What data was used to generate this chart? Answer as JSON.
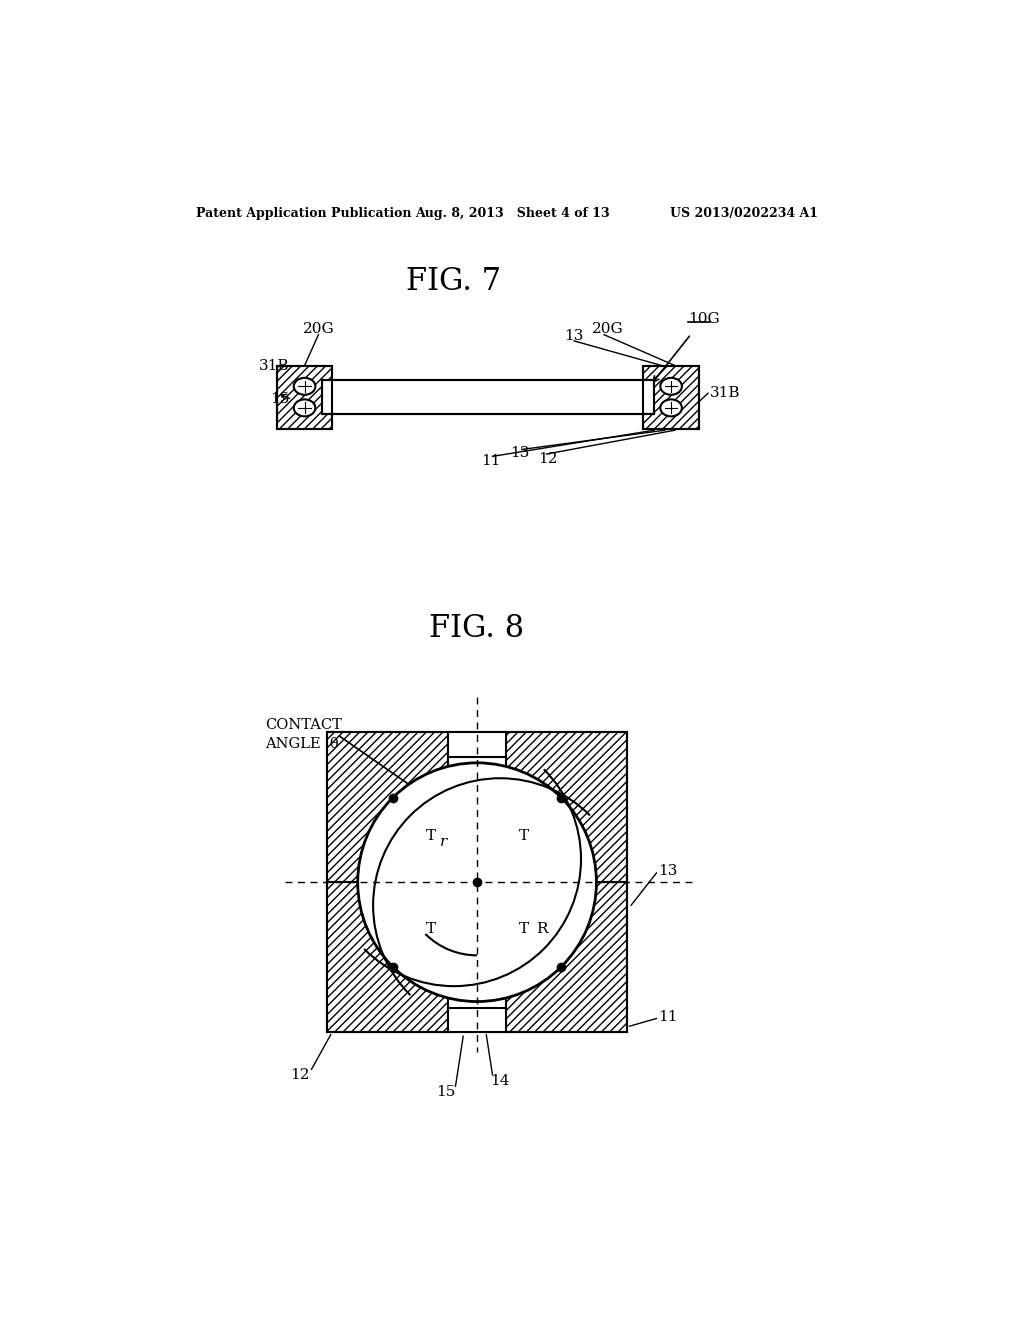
{
  "bg_color": "#ffffff",
  "header_left": "Patent Application Publication",
  "header_mid": "Aug. 8, 2013   Sheet 4 of 13",
  "header_right": "US 2013/0202234 A1",
  "fig7_title": "FIG. 7",
  "fig8_title": "FIG. 8",
  "line_color": "#000000"
}
